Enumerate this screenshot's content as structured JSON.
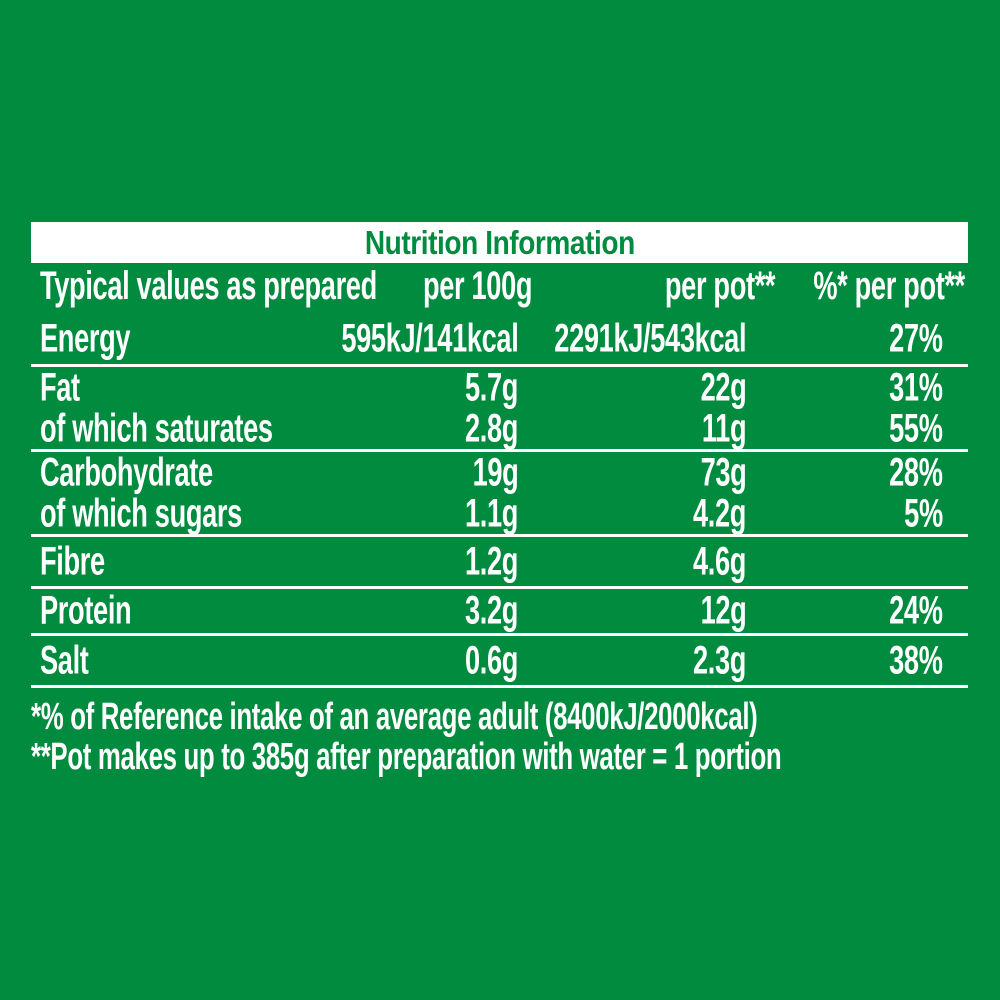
{
  "colors": {
    "background_green": "#008B3E",
    "banner_background": "#FFFFFF",
    "banner_text_green": "#008B3E",
    "table_text": "#FFFFFF",
    "divider": "#FFFFFF"
  },
  "banner": {
    "title": "Nutrition Information"
  },
  "table": {
    "header": {
      "typical_values": "Typical values as prepared",
      "per_100g": "per 100g",
      "per_pot": "per pot**",
      "pct_per_pot": "%* per pot**"
    },
    "groups": [
      {
        "rows": [
          {
            "label": "Energy",
            "per_100g": "595kJ/141kcal",
            "per_pot": "2291kJ/543kcal",
            "pct_per_pot": "27%"
          }
        ]
      },
      {
        "rows": [
          {
            "label": "Fat",
            "per_100g": "5.7g",
            "per_pot": "22g",
            "pct_per_pot": "31%"
          },
          {
            "label": "of which saturates",
            "per_100g": "2.8g",
            "per_pot": "11g",
            "pct_per_pot": "55%"
          }
        ]
      },
      {
        "rows": [
          {
            "label": "Carbohydrate",
            "per_100g": "19g",
            "per_pot": "73g",
            "pct_per_pot": "28%"
          },
          {
            "label": "of which sugars",
            "per_100g": "1.1g",
            "per_pot": "4.2g",
            "pct_per_pot": "5%"
          }
        ]
      },
      {
        "rows": [
          {
            "label": "Fibre",
            "per_100g": "1.2g",
            "per_pot": "4.6g",
            "pct_per_pot": ""
          }
        ]
      },
      {
        "rows": [
          {
            "label": "Protein",
            "per_100g": "3.2g",
            "per_pot": "12g",
            "pct_per_pot": "24%"
          }
        ]
      },
      {
        "rows": [
          {
            "label": "Salt",
            "per_100g": "0.6g",
            "per_pot": "2.3g",
            "pct_per_pot": "38%"
          }
        ]
      }
    ]
  },
  "footnotes": {
    "reference_intake": "*% of Reference intake of an average adult (8400kJ/2000kcal)",
    "pot_preparation": "**Pot makes up to 385g after preparation with water = 1 portion"
  }
}
